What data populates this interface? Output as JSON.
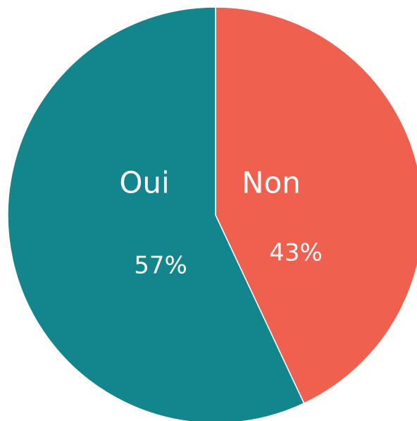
{
  "chart_data": {
    "type": "pie",
    "categories": [
      "Non",
      "Oui"
    ],
    "values": [
      43,
      57
    ],
    "value_labels": [
      "43%",
      "57%"
    ],
    "colors": [
      "#f0604f",
      "#12868c"
    ]
  }
}
